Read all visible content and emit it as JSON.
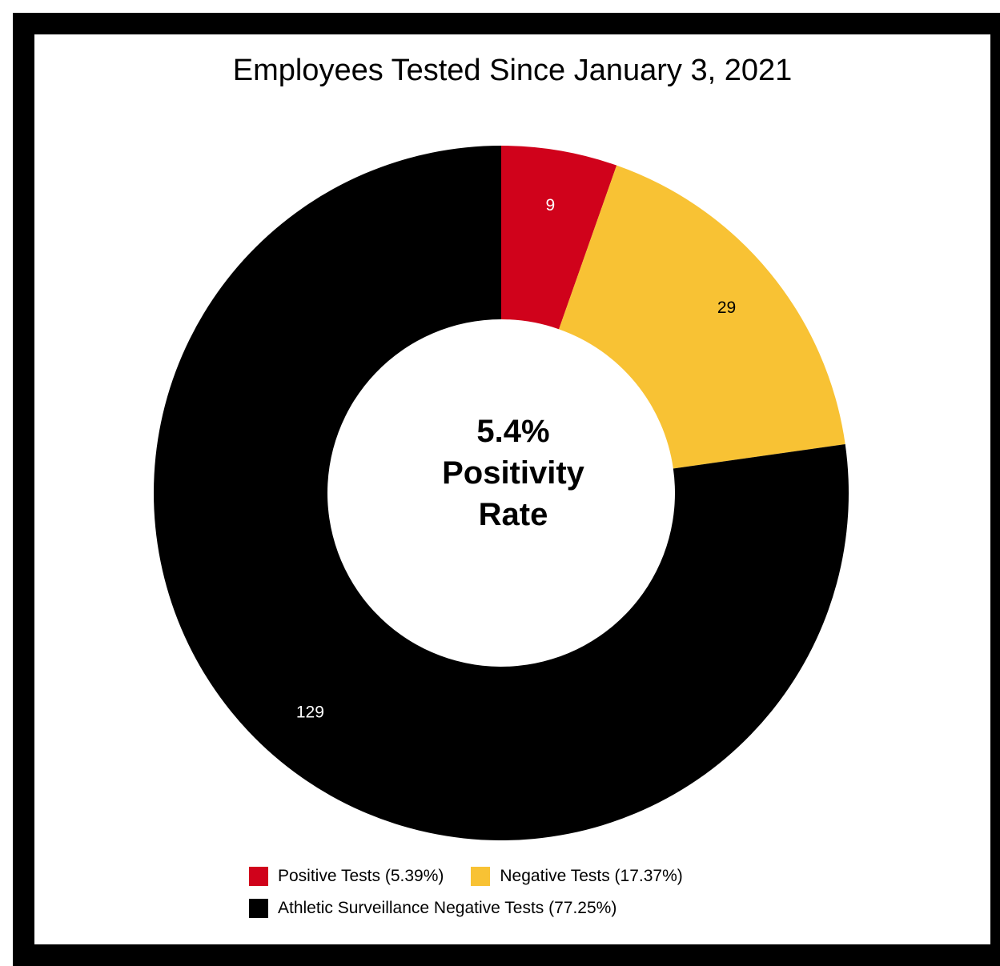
{
  "chart_data": {
    "type": "pie",
    "title": "Employees Tested Since January 3, 2021",
    "center_text": [
      "5.4%",
      "Positivity",
      "Rate"
    ],
    "slices": [
      {
        "label": "Positive Tests (5.39%)",
        "value": 9,
        "value_label": "9",
        "color": "#d0021b",
        "label_color": "#ffffff"
      },
      {
        "label": "Negative Tests (17.37%)",
        "value": 29,
        "value_label": "29",
        "color": "#f8c234",
        "label_color": "#000000"
      },
      {
        "label": "Athletic Surveillance Negative Tests (77.25%)",
        "value": 129,
        "value_label": "129",
        "color": "#000000",
        "label_color": "#ffffff"
      }
    ],
    "legend": {
      "placement": "bottom"
    },
    "donut": true
  }
}
